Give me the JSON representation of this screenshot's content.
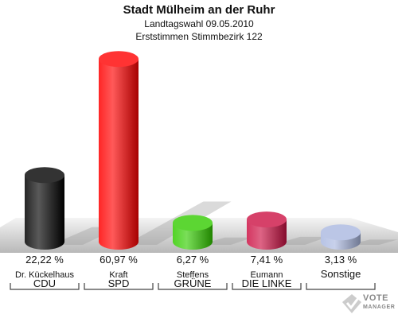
{
  "header": {
    "title": "Stadt Mülheim an der Ruhr",
    "subtitle": "Landtagswahl 09.05.2010",
    "subtitle2": "Erststimmen Stimmbezirk 122"
  },
  "logo": {
    "line1": "VOTE",
    "line2": "MANAGER"
  },
  "chart_data": {
    "type": "bar",
    "title": "Stadt Mülheim an der Ruhr",
    "subtitle": "Landtagswahl 09.05.2010 — Erststimmen Stimmbezirk 122",
    "xlabel": "",
    "ylabel": "",
    "ylim": [
      0,
      65
    ],
    "grid": false,
    "categories": [
      "CDU",
      "SPD",
      "GRÜNE",
      "DIE LINKE",
      "Sonstige"
    ],
    "candidates": [
      "Dr. Kückelhaus",
      "Kraft",
      "Steffens",
      "Eumann",
      ""
    ],
    "values": [
      22.22,
      60.97,
      6.27,
      7.41,
      3.13
    ],
    "value_labels": [
      "22,22 %",
      "60,97 %",
      "6,27 %",
      "7,41 %",
      "3,13 %"
    ],
    "colors": [
      "#000000",
      "#ff0000",
      "#33cc00",
      "#cc1144",
      "#aab8e0"
    ]
  }
}
